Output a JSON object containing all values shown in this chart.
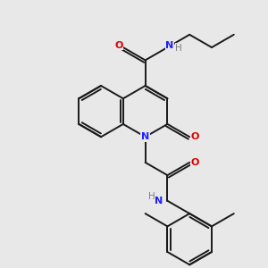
{
  "bg_color": "#e8e8e8",
  "bond_color": "#1a1a1a",
  "nitrogen_color": "#2020ff",
  "oxygen_color": "#dd0000",
  "hydrogen_color": "#808080",
  "line_width": 1.4,
  "fig_size": [
    3.0,
    3.0
  ],
  "dpi": 100,
  "xlim": [
    -3.2,
    3.2
  ],
  "ylim": [
    -3.5,
    3.0
  ]
}
